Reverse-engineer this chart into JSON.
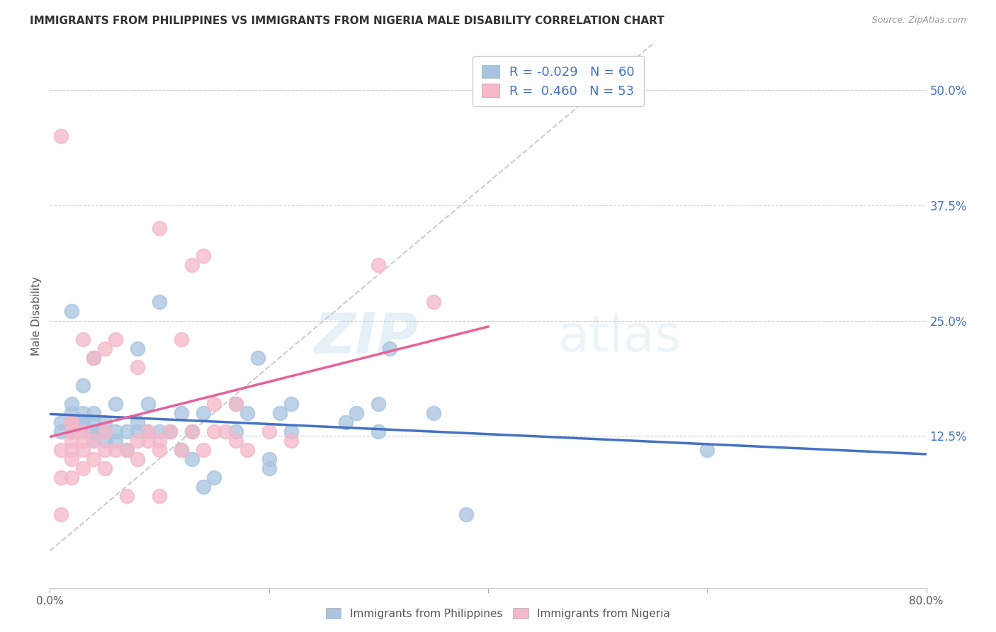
{
  "title": "IMMIGRANTS FROM PHILIPPINES VS IMMIGRANTS FROM NIGERIA MALE DISABILITY CORRELATION CHART",
  "source": "Source: ZipAtlas.com",
  "ylabel": "Male Disability",
  "right_yticks": [
    "50.0%",
    "37.5%",
    "25.0%",
    "12.5%"
  ],
  "right_ytick_vals": [
    0.5,
    0.375,
    0.25,
    0.125
  ],
  "xlim": [
    0.0,
    0.8
  ],
  "ylim": [
    -0.04,
    0.55
  ],
  "philippines_R": -0.029,
  "philippines_N": 60,
  "nigeria_R": 0.46,
  "nigeria_N": 53,
  "philippines_color": "#a8c4e0",
  "philippines_line_color": "#4472c4",
  "nigeria_color": "#f4b8c8",
  "nigeria_line_color": "#e8609a",
  "diagonal_color": "#cccccc",
  "watermark_zip": "ZIP",
  "watermark_atlas": "atlas",
  "philippines_x": [
    0.01,
    0.01,
    0.02,
    0.02,
    0.02,
    0.02,
    0.02,
    0.02,
    0.02,
    0.03,
    0.03,
    0.03,
    0.03,
    0.03,
    0.04,
    0.04,
    0.04,
    0.04,
    0.04,
    0.04,
    0.05,
    0.05,
    0.05,
    0.06,
    0.06,
    0.06,
    0.07,
    0.07,
    0.08,
    0.08,
    0.08,
    0.09,
    0.09,
    0.1,
    0.1,
    0.11,
    0.12,
    0.12,
    0.13,
    0.13,
    0.14,
    0.14,
    0.15,
    0.17,
    0.17,
    0.18,
    0.19,
    0.2,
    0.2,
    0.21,
    0.22,
    0.22,
    0.27,
    0.28,
    0.3,
    0.3,
    0.31,
    0.35,
    0.38,
    0.6
  ],
  "philippines_y": [
    0.13,
    0.14,
    0.13,
    0.14,
    0.14,
    0.15,
    0.16,
    0.26,
    0.13,
    0.13,
    0.14,
    0.14,
    0.15,
    0.18,
    0.12,
    0.13,
    0.13,
    0.14,
    0.15,
    0.21,
    0.12,
    0.13,
    0.14,
    0.12,
    0.13,
    0.16,
    0.11,
    0.13,
    0.13,
    0.14,
    0.22,
    0.13,
    0.16,
    0.13,
    0.27,
    0.13,
    0.11,
    0.15,
    0.1,
    0.13,
    0.07,
    0.15,
    0.08,
    0.13,
    0.16,
    0.15,
    0.21,
    0.09,
    0.1,
    0.15,
    0.13,
    0.16,
    0.14,
    0.15,
    0.13,
    0.16,
    0.22,
    0.15,
    0.04,
    0.11
  ],
  "nigeria_x": [
    0.01,
    0.01,
    0.01,
    0.01,
    0.02,
    0.02,
    0.02,
    0.02,
    0.02,
    0.02,
    0.02,
    0.03,
    0.03,
    0.03,
    0.03,
    0.03,
    0.04,
    0.04,
    0.04,
    0.05,
    0.05,
    0.05,
    0.05,
    0.06,
    0.06,
    0.07,
    0.07,
    0.08,
    0.08,
    0.08,
    0.09,
    0.09,
    0.1,
    0.1,
    0.1,
    0.1,
    0.11,
    0.12,
    0.12,
    0.13,
    0.13,
    0.14,
    0.14,
    0.15,
    0.15,
    0.16,
    0.17,
    0.17,
    0.18,
    0.2,
    0.22,
    0.3,
    0.35
  ],
  "nigeria_y": [
    0.04,
    0.08,
    0.11,
    0.45,
    0.08,
    0.1,
    0.11,
    0.12,
    0.13,
    0.14,
    0.14,
    0.09,
    0.11,
    0.12,
    0.13,
    0.23,
    0.1,
    0.12,
    0.21,
    0.09,
    0.11,
    0.13,
    0.22,
    0.11,
    0.23,
    0.06,
    0.11,
    0.1,
    0.12,
    0.2,
    0.12,
    0.13,
    0.06,
    0.11,
    0.12,
    0.35,
    0.13,
    0.11,
    0.23,
    0.13,
    0.31,
    0.11,
    0.32,
    0.13,
    0.16,
    0.13,
    0.12,
    0.16,
    0.11,
    0.13,
    0.12,
    0.31,
    0.27
  ]
}
